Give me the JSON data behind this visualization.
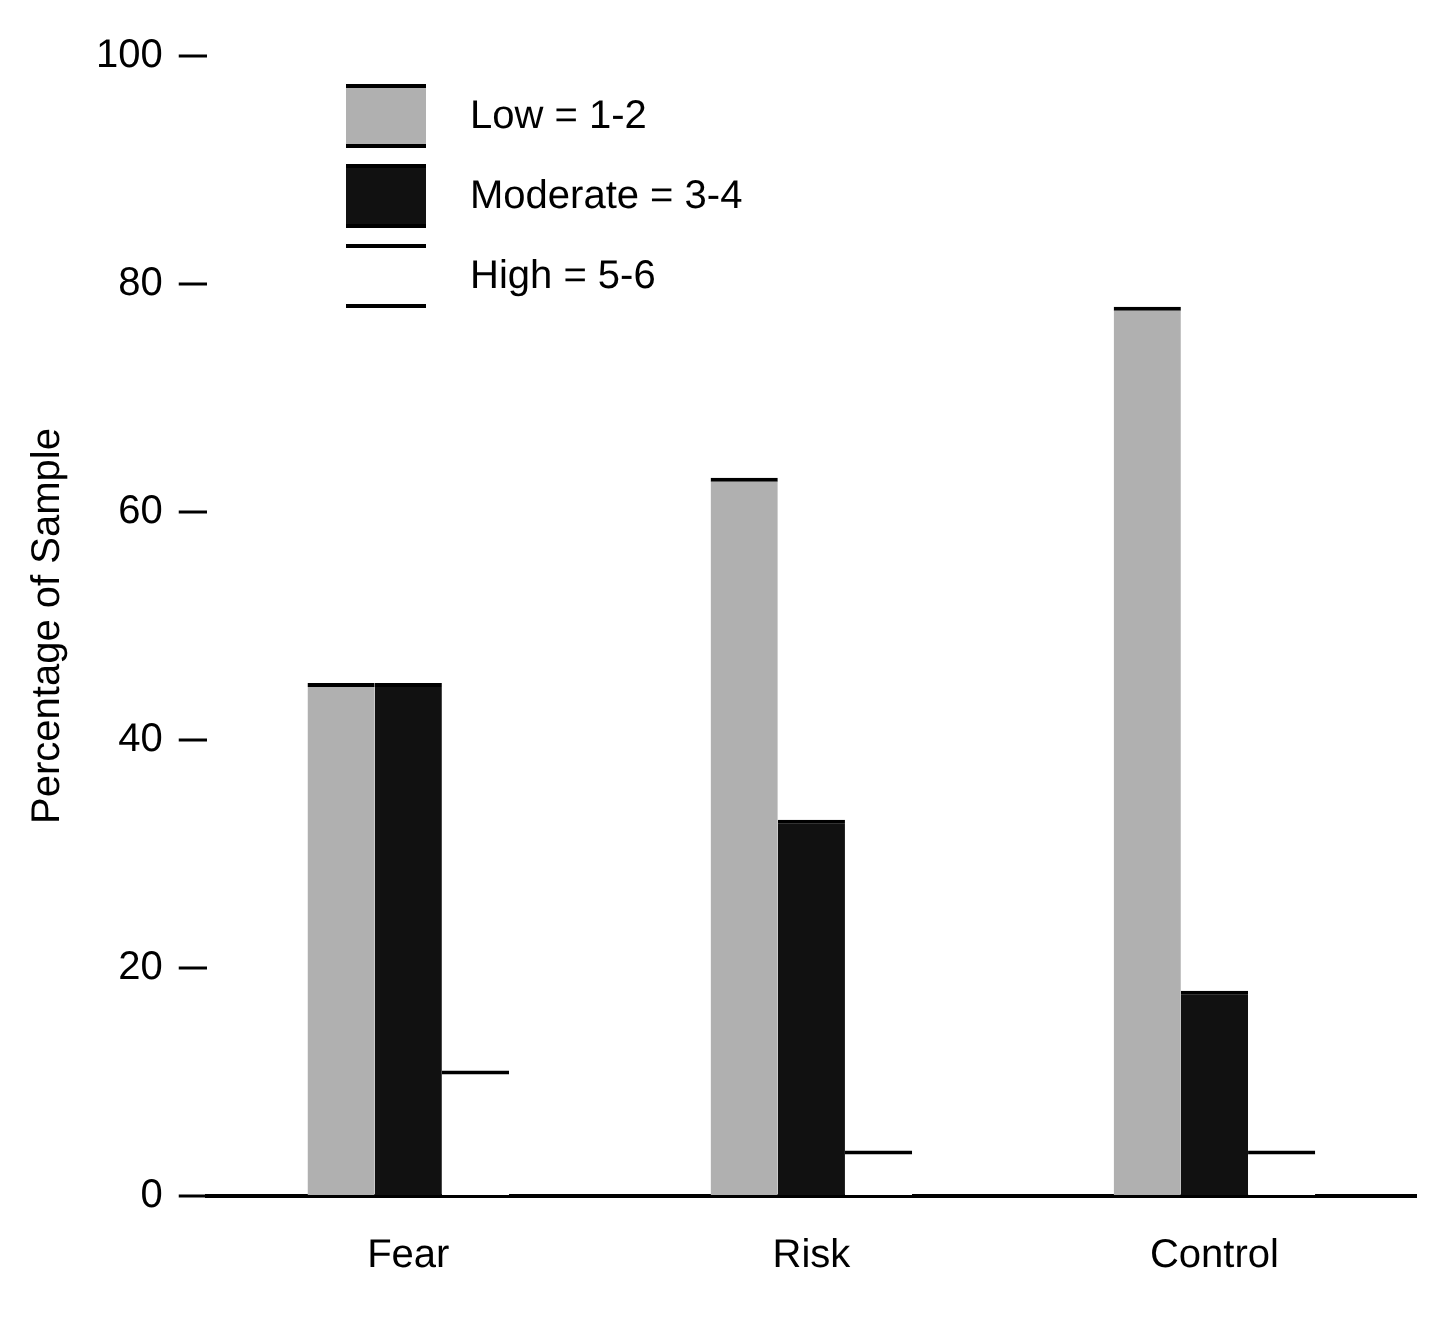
{
  "chart_data": {
    "type": "bar",
    "ylabel": "Percentage of Sample",
    "categories": [
      "Fear",
      "Risk",
      "Control"
    ],
    "series": [
      {
        "name": "Low = 1-2",
        "color": "#b0b0b0",
        "values": [
          45,
          63,
          78
        ]
      },
      {
        "name": "Moderate = 3-4",
        "color": "#111111",
        "values": [
          45,
          33,
          18
        ]
      },
      {
        "name": "High = 5-6",
        "color": "#ffffff",
        "values": [
          11,
          4,
          4
        ]
      }
    ],
    "ylim": [
      0,
      100
    ],
    "yticks": [
      0,
      20,
      40,
      60,
      80,
      100
    ],
    "grid": false,
    "legend": "top left"
  }
}
